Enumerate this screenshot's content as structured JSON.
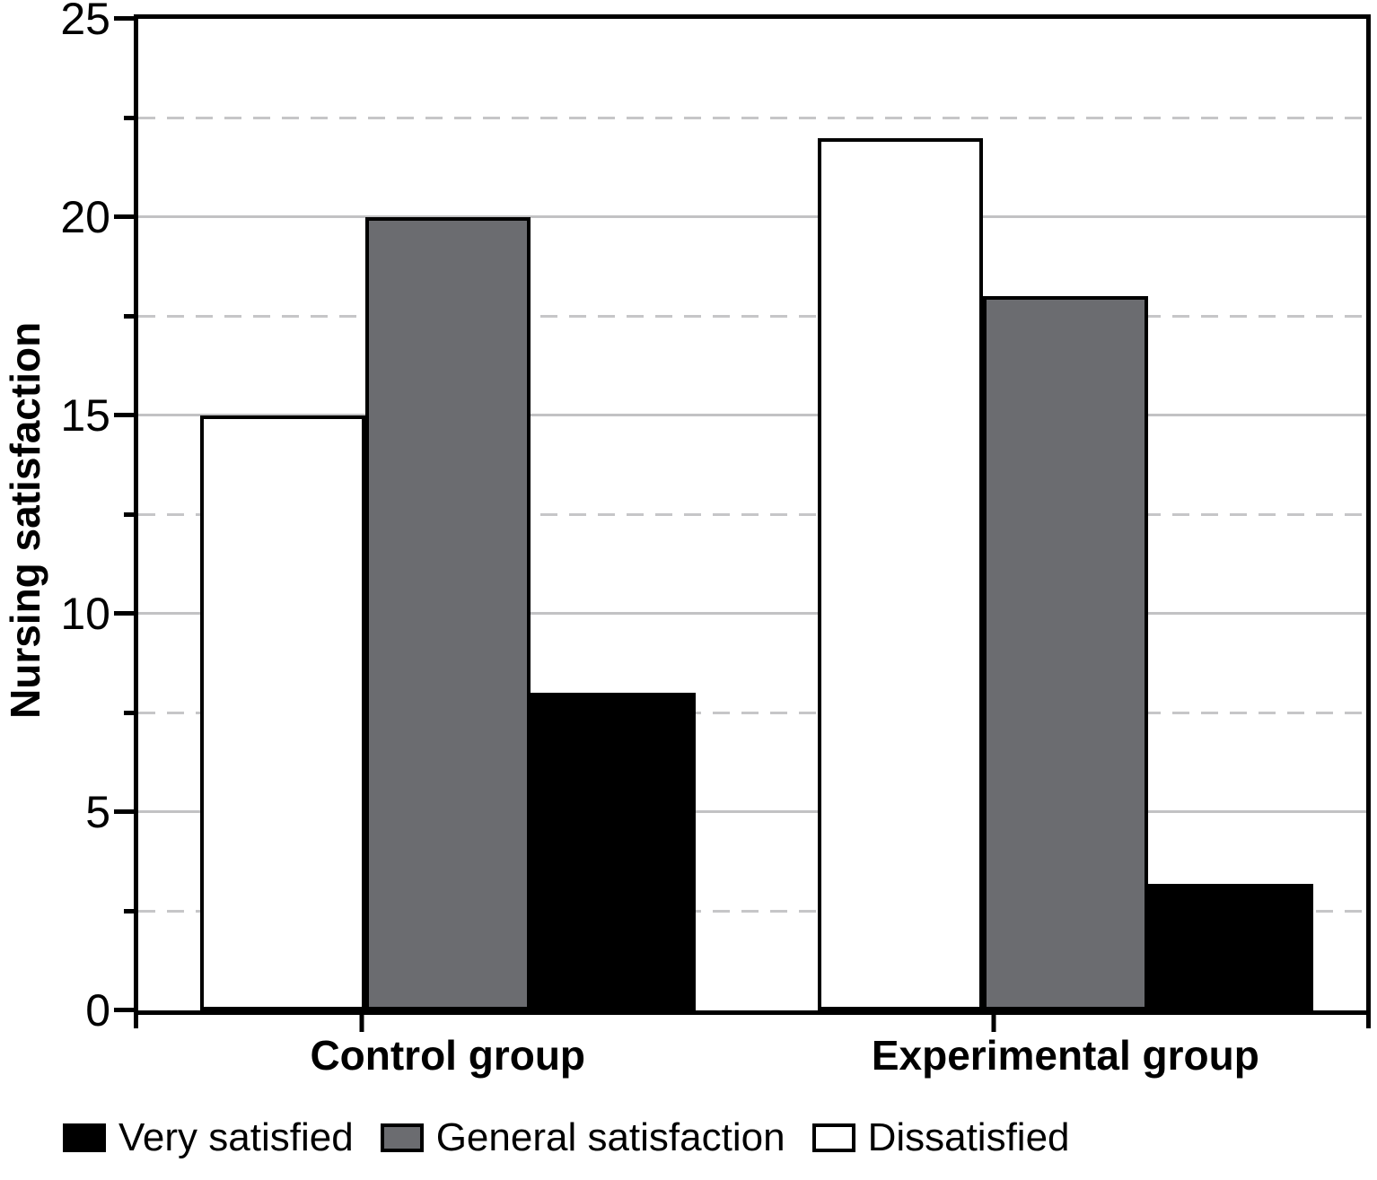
{
  "chart_data": {
    "type": "bar",
    "title": "",
    "ylabel": "Nursing satisfaction",
    "xlabel": "",
    "categories": [
      "Control group",
      "Experimental group"
    ],
    "series": [
      {
        "name": "Dissatisfied",
        "fill": "#ffffff",
        "values": [
          15,
          22
        ]
      },
      {
        "name": "General satisfaction",
        "fill": "#6b6c70",
        "values": [
          20,
          18
        ]
      },
      {
        "name": "Very satisfied",
        "fill": "#000000",
        "values": [
          8,
          3.2
        ]
      }
    ],
    "bar_draw_order_note": "bars drawn left-to-right per group: Dissatisfied (white), General satisfaction (gray), Very satisfied (black)",
    "ylim": [
      0,
      25
    ],
    "yticks": [
      0,
      5,
      10,
      15,
      20,
      25
    ],
    "minor_yticks": [
      2.5,
      7.5,
      12.5,
      17.5,
      22.5
    ],
    "grid": {
      "major_style": "solid",
      "minor_style": "dashed",
      "major_color": "#c2c2c4",
      "minor_color": "#c6c6c8",
      "grid_on": true
    },
    "bar_border_color": "#000000",
    "legend": {
      "position": "bottom",
      "items": [
        {
          "label": "Very satisfied",
          "fill": "#000000"
        },
        {
          "label": "General satisfaction",
          "fill": "#6b6c70"
        },
        {
          "label": "Dissatisfied",
          "fill": "#ffffff"
        }
      ]
    }
  }
}
